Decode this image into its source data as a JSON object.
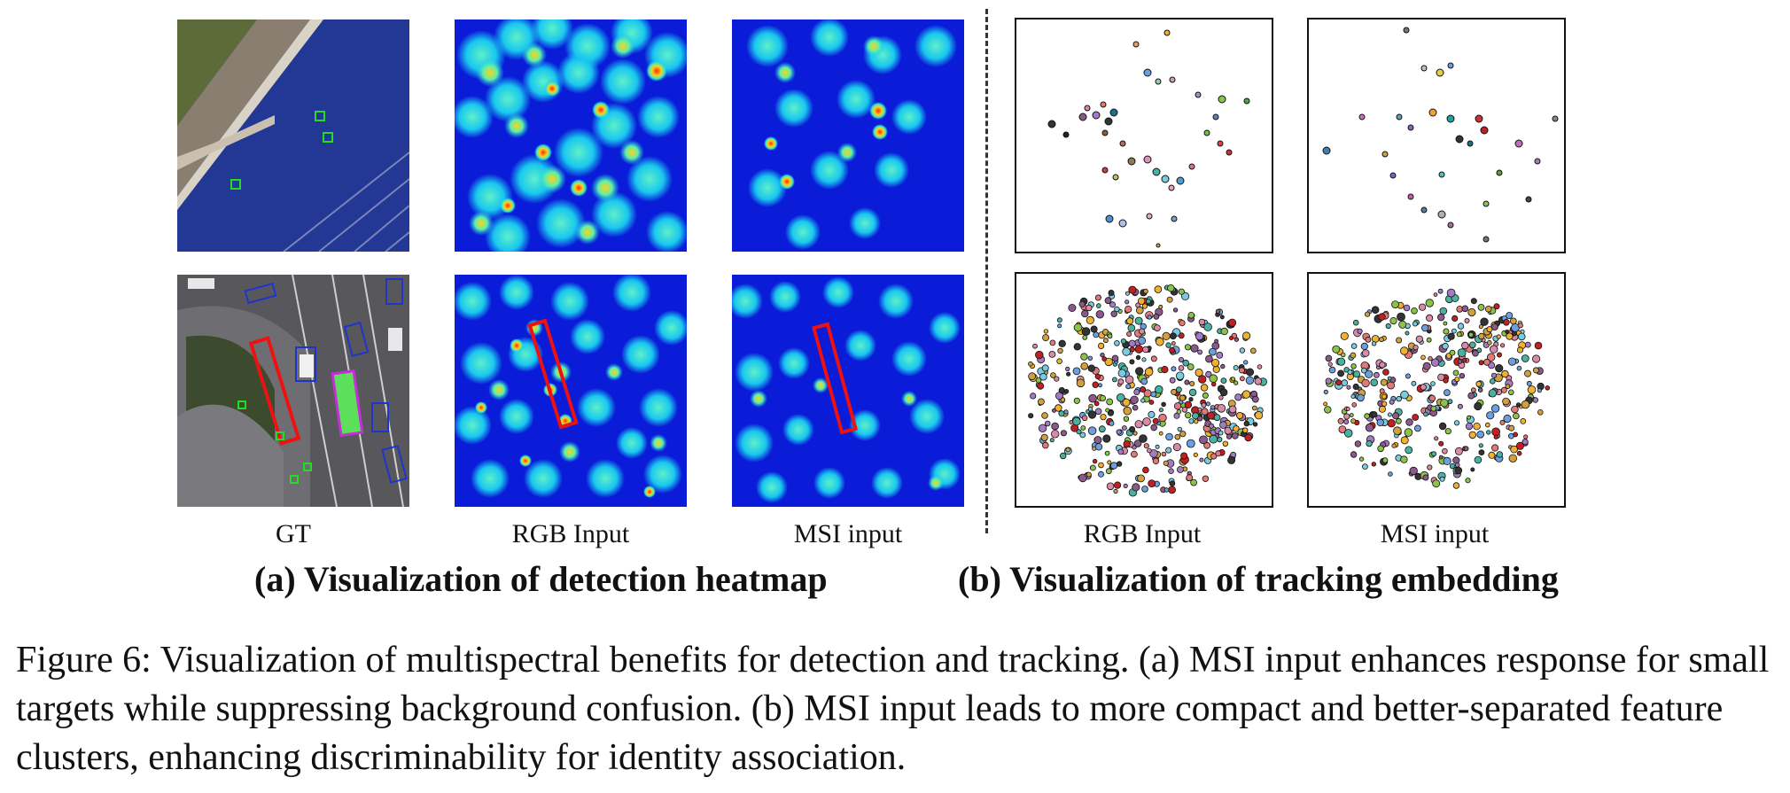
{
  "column_labels": {
    "gt": "GT",
    "rgb_a": "RGB Input",
    "msi_a": "MSI input",
    "rgb_b": "RGB Input",
    "msi_b": "MSI input"
  },
  "subcaptions": {
    "a": "(a) Visualization of detection heatmap",
    "b": "(b) Visualization of tracking embedding"
  },
  "caption": "Figure 6: Visualization of multispectral benefits for detection and tracking. (a) MSI input enhances response for small targets while suppressing background confusion. (b) MSI input leads to more compact and better-separated feature clusters, enhancing discriminability for identity association.",
  "colors": {
    "gt_box": "#22dd22",
    "highlight_box": "#ee1111",
    "heat_low": "#0a1cd8",
    "heat_mid": "#19c7f0",
    "heat_high": "#ff2a10"
  }
}
